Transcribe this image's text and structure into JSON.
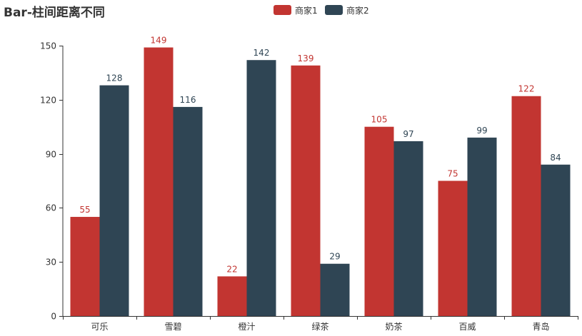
{
  "chart_data": {
    "type": "bar",
    "title": "Bar-柱间距离不同",
    "categories": [
      "可乐",
      "雪碧",
      "橙汁",
      "绿茶",
      "奶茶",
      "百威",
      "青岛"
    ],
    "series": [
      {
        "name": "商家1",
        "values": [
          55,
          149,
          22,
          139,
          105,
          75,
          122
        ],
        "color": "#c23531"
      },
      {
        "name": "商家2",
        "values": [
          128,
          116,
          142,
          29,
          97,
          99,
          84
        ],
        "color": "#2f4554"
      }
    ],
    "ylim": [
      0,
      150
    ],
    "yticks": [
      0,
      30,
      60,
      90,
      120,
      150
    ],
    "ytick_labels": [
      "0",
      "30",
      "60",
      "90",
      "120",
      "150"
    ],
    "grid": false,
    "legend_position": "top-center",
    "data_labels": true,
    "xlabel": "",
    "ylabel": ""
  }
}
